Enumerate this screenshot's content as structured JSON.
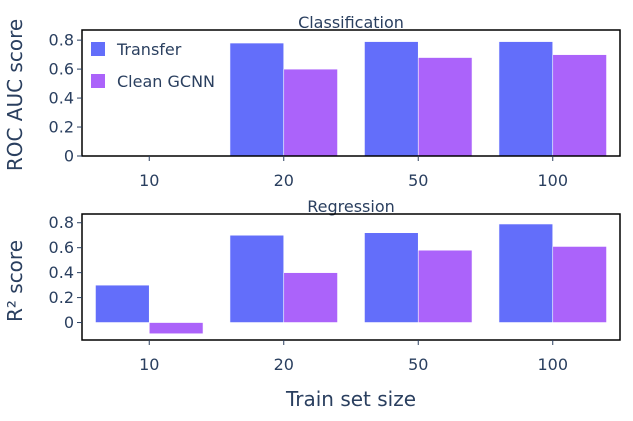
{
  "chart_data": {
    "type": "bar",
    "xlabel": "Train set size",
    "categories": [
      "10",
      "20",
      "50",
      "100"
    ],
    "legend": {
      "position": "top-left",
      "entries": [
        {
          "name": "Transfer",
          "color": "#636efa"
        },
        {
          "name": "Clean GCNN",
          "color": "#ab63fa"
        }
      ]
    },
    "grid": false,
    "panels": [
      {
        "title": "Classification",
        "ylabel": "ROC AUC score",
        "ylim": [
          0,
          0.87
        ],
        "yticks": [
          0,
          0.2,
          0.4,
          0.6,
          0.8
        ],
        "ytick_labels": [
          "0",
          "0.2",
          "0.4",
          "0.6",
          "0.8"
        ],
        "series": [
          {
            "name": "Transfer",
            "color": "#636efa",
            "values": [
              null,
              0.78,
              0.79,
              0.79
            ]
          },
          {
            "name": "Clean GCNN",
            "color": "#ab63fa",
            "values": [
              null,
              0.6,
              0.68,
              0.7
            ]
          }
        ]
      },
      {
        "title": "Regression",
        "ylabel": "R² score",
        "ylim": [
          -0.14,
          0.87
        ],
        "yticks": [
          0,
          0.2,
          0.4,
          0.6,
          0.8
        ],
        "ytick_labels": [
          "0",
          "0.2",
          "0.4",
          "0.6",
          "0.8"
        ],
        "series": [
          {
            "name": "Transfer",
            "color": "#636efa",
            "values": [
              0.3,
              0.7,
              0.72,
              0.79
            ]
          },
          {
            "name": "Clean GCNN",
            "color": "#ab63fa",
            "values": [
              -0.09,
              0.4,
              0.58,
              0.61
            ]
          }
        ]
      }
    ]
  }
}
